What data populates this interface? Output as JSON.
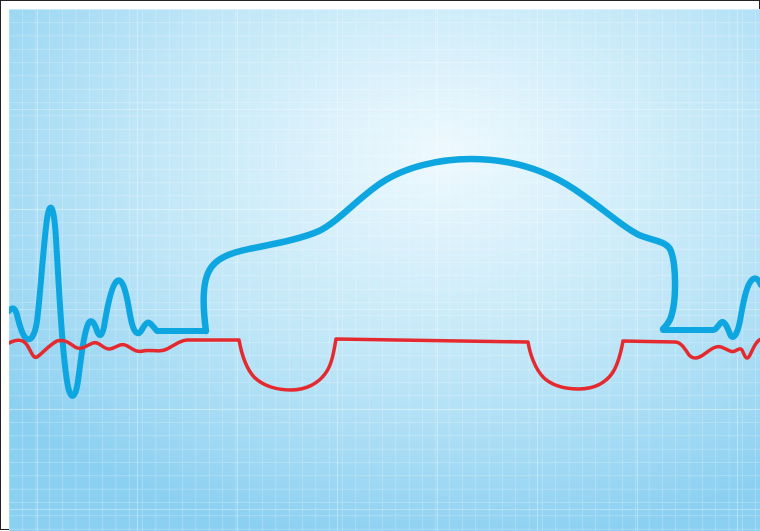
{
  "illustration": {
    "subject": "car-heartbeat-graphic",
    "colors": {
      "background_center": "#eef9fe",
      "background_mid": "#bfe6f7",
      "background_edge": "#8cd0f1",
      "grid_line": "#ffffff",
      "heartbeat_line": "#0ea6e0",
      "car_body_line": "#0ea6e0",
      "wheel_line": "#e52a2f"
    },
    "icons": [
      "car-body-outline",
      "ecg-heartbeat-line",
      "wheel-arch-line"
    ]
  }
}
